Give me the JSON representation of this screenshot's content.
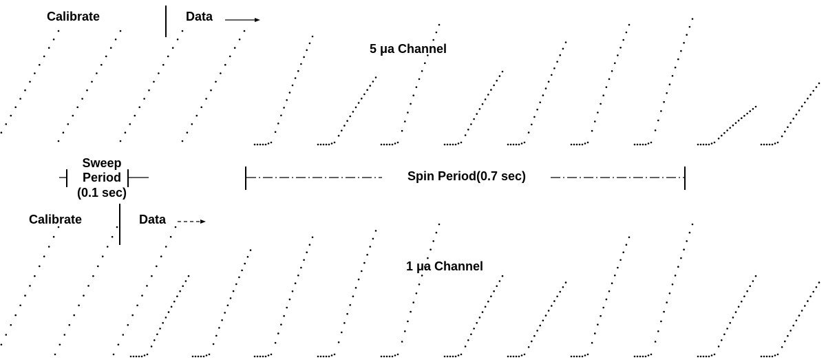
{
  "top_panel": {
    "calibrate_label": "Calibrate",
    "data_label": "Data",
    "channel_label": "5 μa Channel"
  },
  "sweep_period": {
    "lines": [
      "Sweep",
      "Period",
      "(0.1 sec)"
    ]
  },
  "spin_period": {
    "label": "Spin Period(0.7 sec)"
  },
  "bottom_panel": {
    "calibrate_label": "Calibrate",
    "data_label": "Data",
    "channel_label": "1 μa Channel"
  }
}
